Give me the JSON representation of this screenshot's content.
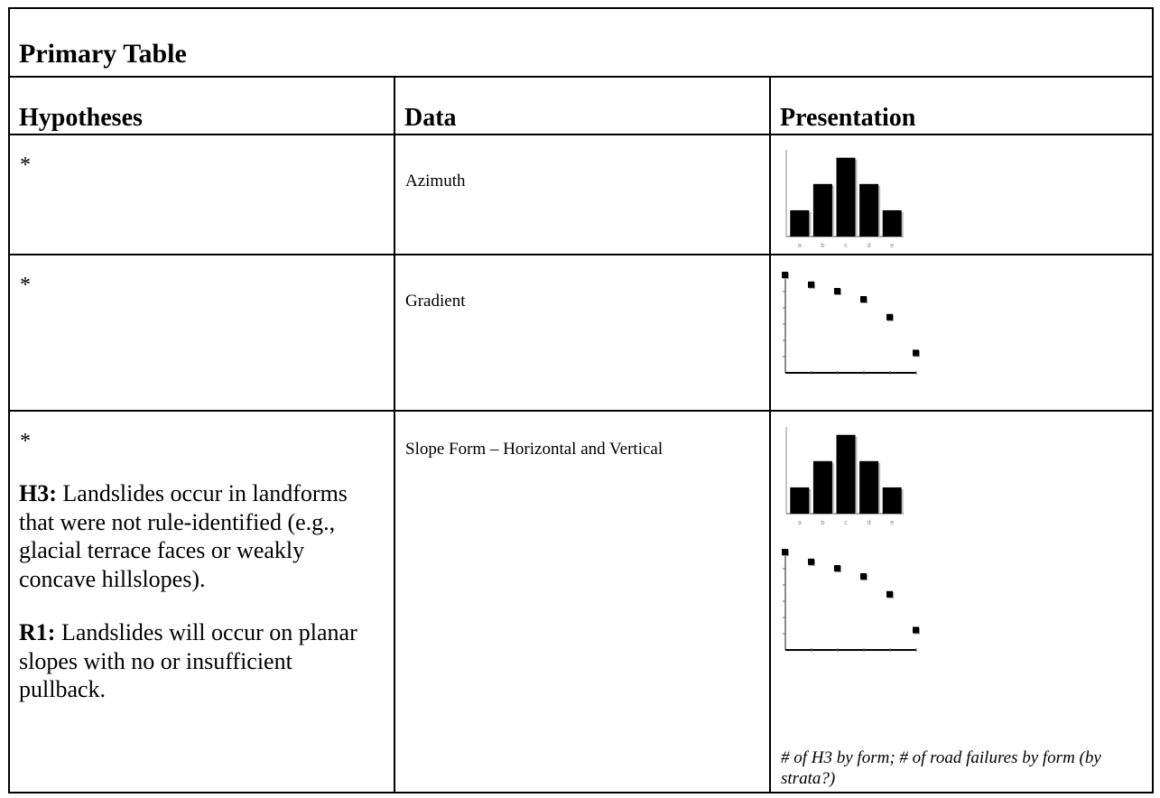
{
  "table": {
    "title": "Primary Table",
    "headers": {
      "hypotheses": "Hypotheses",
      "data": "Data",
      "presentation": "Presentation"
    },
    "rows": [
      {
        "hypothesis_marker": "*",
        "data": "Azimuth"
      },
      {
        "hypothesis_marker": "*",
        "data": "Gradient"
      },
      {
        "hypothesis_marker": "*",
        "data": "Slope Form – Horizontal and Vertical",
        "h3_label": "H3:",
        "h3_text": " Landslides occur in landforms that were not rule-identified (e.g., glacial terrace faces or weakly concave hillslopes).",
        "r1_label": "R1:",
        "r1_text": " Landslides will occur on planar slopes with no or insufficient pullback.",
        "note": "# of H3 by form; # of road failures by form (by strata?)"
      }
    ]
  },
  "chart_data": [
    {
      "type": "bar",
      "categories": [
        "a",
        "b",
        "c",
        "d",
        "e"
      ],
      "values": [
        1,
        2,
        3,
        2,
        1
      ],
      "ylim": [
        0,
        3.3
      ]
    },
    {
      "type": "scatter",
      "x": [
        0,
        1,
        2,
        3,
        4,
        5
      ],
      "y": [
        6,
        5.4,
        5.0,
        4.5,
        3.4,
        1.2
      ],
      "xlim": [
        0,
        5
      ],
      "ylim": [
        0,
        6
      ]
    },
    {
      "type": "bar",
      "categories": [
        "a",
        "b",
        "c",
        "d",
        "e"
      ],
      "values": [
        1,
        2,
        3,
        2,
        1
      ],
      "ylim": [
        0,
        3.3
      ]
    },
    {
      "type": "scatter",
      "x": [
        0,
        1,
        2,
        3,
        4,
        5
      ],
      "y": [
        6,
        5.4,
        5.0,
        4.5,
        3.4,
        1.2
      ],
      "xlim": [
        0,
        5
      ],
      "ylim": [
        0,
        6
      ]
    }
  ]
}
